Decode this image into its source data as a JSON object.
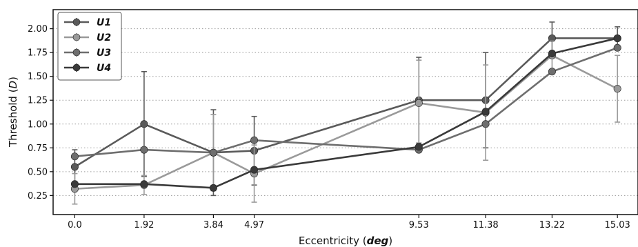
{
  "chart_data": {
    "type": "line",
    "xlabel": "Eccentricity",
    "xlabel_unit": "deg",
    "ylabel": "Threshold",
    "ylabel_unit": "D",
    "x": [
      0.0,
      1.92,
      3.84,
      4.97,
      9.53,
      11.38,
      13.22,
      15.03
    ],
    "x_tick_labels": [
      "0.0",
      "1.92",
      "3.84",
      "4.97",
      "9.53",
      "11.38",
      "13.22",
      "15.03"
    ],
    "y_ticks": [
      0.25,
      0.5,
      0.75,
      1.0,
      1.25,
      1.5,
      1.75,
      2.0
    ],
    "y_tick_labels": [
      "0.25",
      "0.50",
      "0.75",
      "1.00",
      "1.25",
      "1.50",
      "1.75",
      "2.00"
    ],
    "xlim": [
      -0.6,
      15.6
    ],
    "ylim": [
      0.05,
      2.2
    ],
    "grid": "horizontal dotted",
    "legend_position": "top-left",
    "series": [
      {
        "name": "U1",
        "color": "#5a5a5a",
        "values": [
          0.55,
          1.0,
          0.7,
          0.72,
          1.25,
          1.25,
          1.9,
          1.9
        ],
        "errors": [
          0.18,
          0.55,
          0.45,
          0.36,
          0.45,
          0.5,
          0.17,
          0.12
        ]
      },
      {
        "name": "U2",
        "color": "#9a9a9a",
        "values": [
          0.32,
          0.36,
          0.7,
          0.48,
          1.22,
          1.12,
          1.72,
          1.37
        ],
        "errors": [
          0.16,
          0.1,
          0.4,
          0.3,
          0.45,
          0.5,
          0.15,
          0.35
        ]
      },
      {
        "name": "U3",
        "color": "#6e6e6e",
        "values": [
          0.66,
          0.73,
          0.7,
          0.83,
          0.73,
          1.0,
          1.55,
          1.8
        ]
      },
      {
        "name": "U4",
        "color": "#3a3a3a",
        "values": [
          0.37,
          0.37,
          0.33,
          0.52,
          0.76,
          1.13,
          1.74,
          1.9
        ]
      }
    ]
  }
}
